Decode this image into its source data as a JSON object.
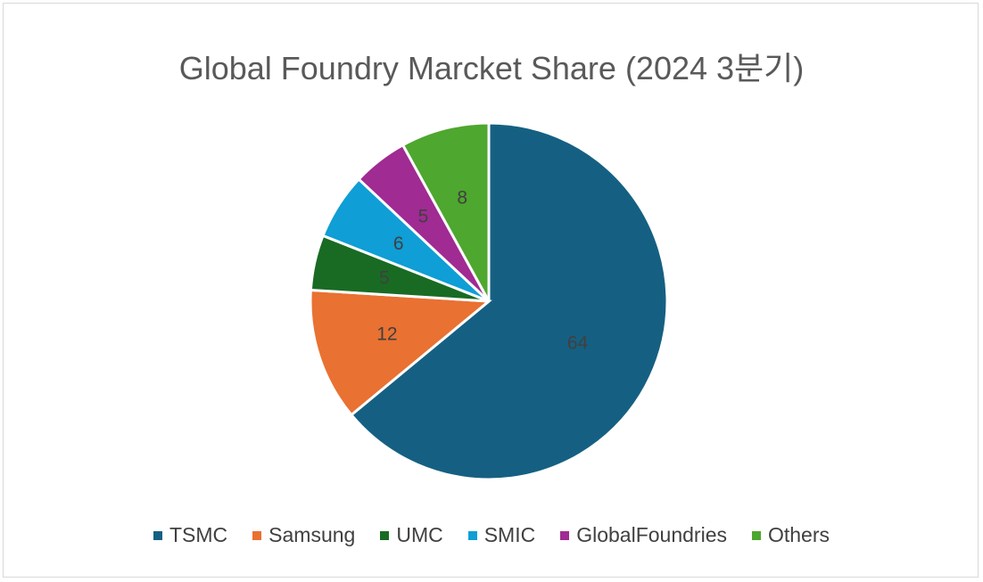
{
  "chart_data": {
    "type": "pie",
    "title": "Global Foundry Marcket Share (2024 3분기)",
    "categories": [
      "TSMC",
      "Samsung",
      "UMC",
      "SMIC",
      "GlobalFoundries",
      "Others"
    ],
    "values": [
      64,
      12,
      5,
      6,
      5,
      8
    ],
    "data_labels": [
      "64",
      "12",
      "5",
      "6",
      "5",
      "8"
    ],
    "colors": [
      "#156082",
      "#E97132",
      "#196B24",
      "#0F9ED5",
      "#A02B93",
      "#4EA72E"
    ],
    "legend_position": "bottom",
    "start_angle_deg": 0,
    "direction": "clockwise"
  }
}
